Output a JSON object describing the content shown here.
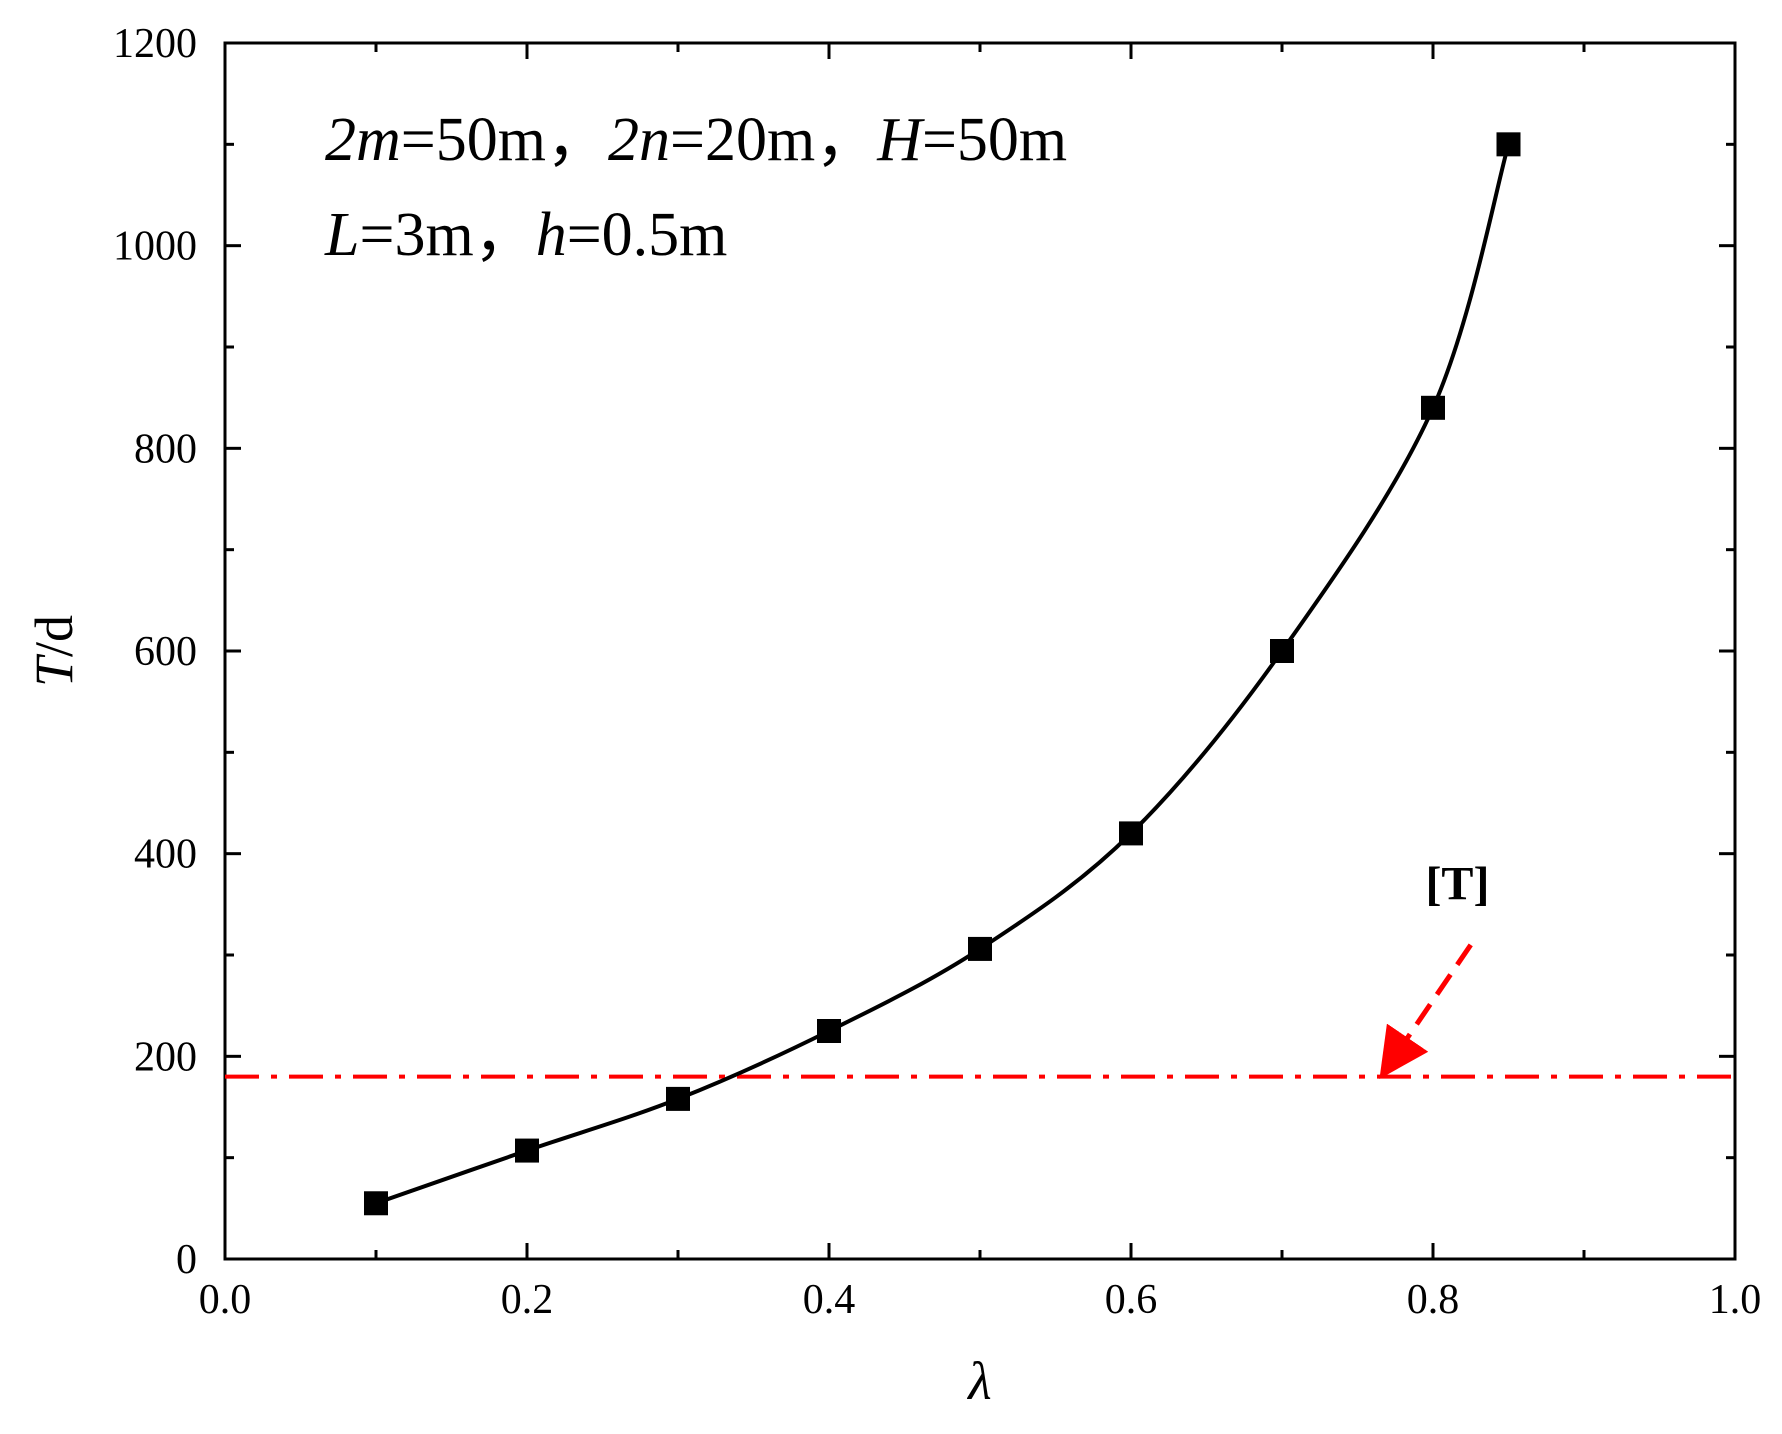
{
  "chart_data": {
    "type": "line",
    "xlabel": "λ",
    "ylabel_italic": "T",
    "ylabel_rest": "/d",
    "xlim": [
      0.0,
      1.0
    ],
    "ylim": [
      0,
      1200
    ],
    "x_ticks": [
      "0.0",
      "0.2",
      "0.4",
      "0.6",
      "0.8",
      "1.0"
    ],
    "x_tick_values": [
      0.0,
      0.2,
      0.4,
      0.6,
      0.8,
      1.0
    ],
    "y_ticks": [
      "0",
      "200",
      "400",
      "600",
      "800",
      "1000",
      "1200"
    ],
    "y_tick_values": [
      0,
      200,
      400,
      600,
      800,
      1000,
      1200
    ],
    "grid": false,
    "series": [
      {
        "marker": "square",
        "line": "solid",
        "color": "#000000",
        "x": [
          0.1,
          0.2,
          0.3,
          0.4,
          0.5,
          0.6,
          0.7,
          0.8,
          0.85
        ],
        "y": [
          55,
          107,
          158,
          225,
          306,
          420,
          600,
          840,
          1100
        ]
      }
    ],
    "reference_line": {
      "label": "[T]",
      "y": 180,
      "color": "#ff0000",
      "style": "dash-dot"
    },
    "annotation": {
      "line1": [
        {
          "text": "2",
          "italic": true
        },
        {
          "text": "m",
          "italic": true
        },
        {
          "text": "=50m，",
          "italic": false
        },
        {
          "text": "2",
          "italic": true
        },
        {
          "text": "n",
          "italic": true
        },
        {
          "text": "=20m，",
          "italic": false
        },
        {
          "text": "H",
          "italic": true
        },
        {
          "text": "=50m",
          "italic": false
        }
      ],
      "line2": [
        {
          "text": "L",
          "italic": true
        },
        {
          "text": "=3m，",
          "italic": false
        },
        {
          "text": "h",
          "italic": true
        },
        {
          "text": "=0.5m",
          "italic": false
        }
      ]
    }
  }
}
